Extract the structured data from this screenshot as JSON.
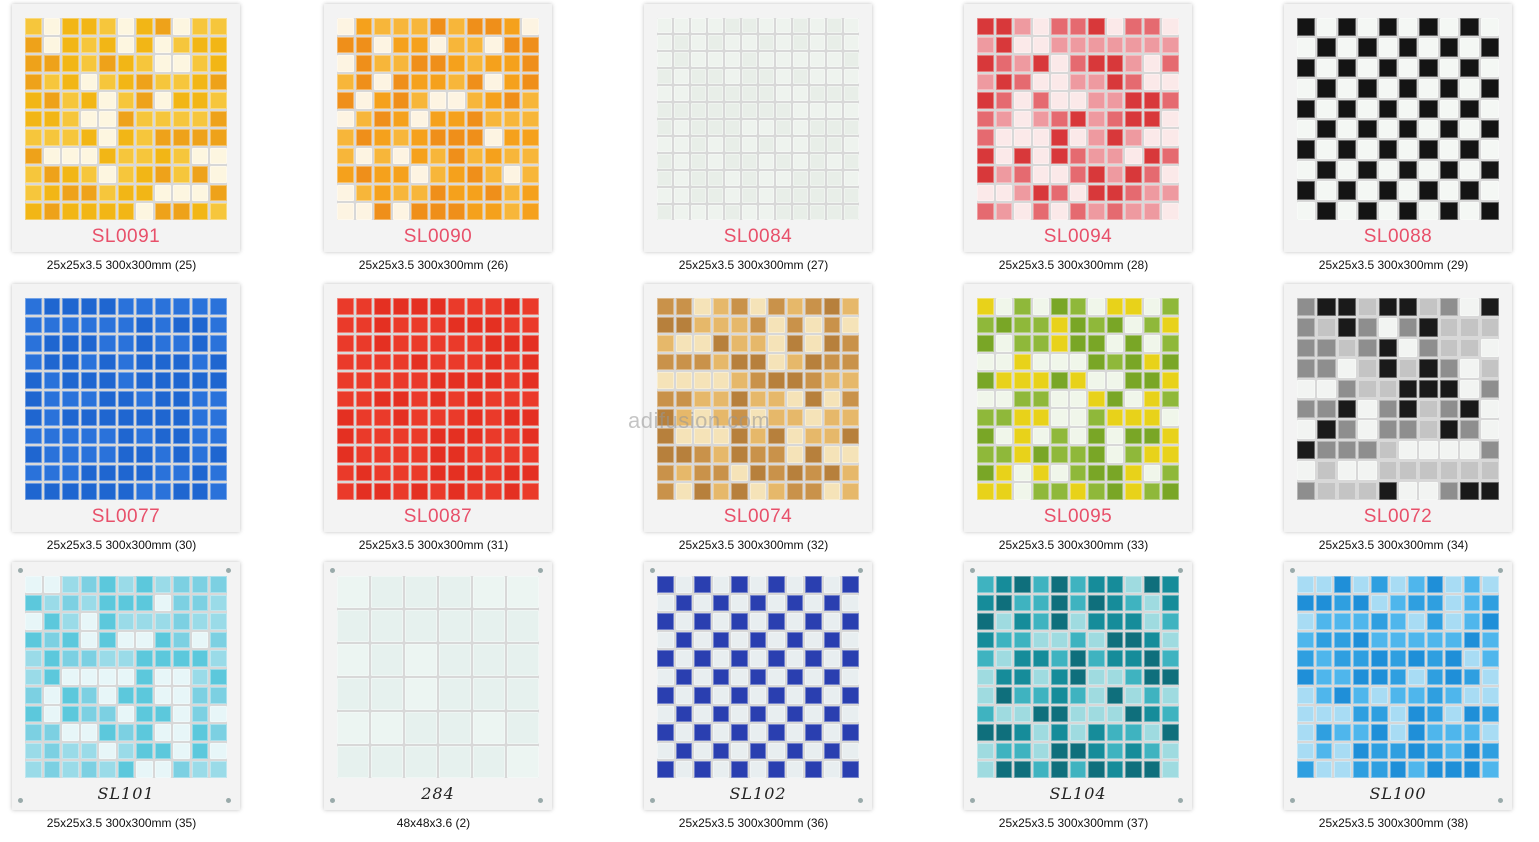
{
  "watermark": "adifusion.com",
  "products": [
    {
      "code": "SL0091",
      "caption": "25x25x3.5 300x300mm (25)",
      "pattern": "mix",
      "palette": [
        "#f2b616",
        "#f6c63c",
        "#fdf6e0",
        "#eea21a"
      ],
      "grid": 11,
      "handwritten": false
    },
    {
      "code": "SL0090",
      "caption": "25x25x3.5 300x300mm (26)",
      "pattern": "mix",
      "palette": [
        "#f5a11c",
        "#f7b63a",
        "#fdf4e2",
        "#ef8f1a"
      ],
      "grid": 11,
      "handwritten": false
    },
    {
      "code": "SL0084",
      "caption": "25x25x3.5 300x300mm (27)",
      "pattern": "solid",
      "palette": [
        "#e8eee8",
        "#eef3ee"
      ],
      "grid": 12,
      "handwritten": false
    },
    {
      "code": "SL0094",
      "caption": "25x25x3.5 300x300mm (28)",
      "pattern": "mix",
      "palette": [
        "#d8383a",
        "#e56a70",
        "#fbe9e9",
        "#ee9aa0"
      ],
      "grid": 11,
      "handwritten": false
    },
    {
      "code": "SL0088",
      "caption": "25x25x3.5 300x300mm (29)",
      "pattern": "checker",
      "palette": [
        "#141414",
        "#f4f7f4"
      ],
      "grid": 10,
      "handwritten": false
    },
    {
      "code": "SL0077",
      "caption": "25x25x3.5 300x300mm (30)",
      "pattern": "solid",
      "palette": [
        "#1f66d0",
        "#2a72da"
      ],
      "grid": 11,
      "handwritten": false
    },
    {
      "code": "SL0087",
      "caption": "25x25x3.5 300x300mm (31)",
      "pattern": "solid",
      "palette": [
        "#e43022",
        "#ea3a2a"
      ],
      "grid": 11,
      "handwritten": false
    },
    {
      "code": "SL0074",
      "caption": "25x25x3.5 300x300mm (32)",
      "pattern": "mix",
      "palette": [
        "#c9924a",
        "#e6b86a",
        "#f5e3b8",
        "#b7803c"
      ],
      "grid": 11,
      "handwritten": false
    },
    {
      "code": "SL0095",
      "caption": "25x25x3.5 300x300mm (33)",
      "pattern": "mix",
      "palette": [
        "#79a626",
        "#e8d21a",
        "#f0f6ea",
        "#8fb83a"
      ],
      "grid": 11,
      "handwritten": false
    },
    {
      "code": "SL0072",
      "caption": "25x25x3.5 300x300mm (34)",
      "pattern": "mix",
      "palette": [
        "#1a1a1a",
        "#8e8e8e",
        "#f2f4f2",
        "#c4c4c4"
      ],
      "grid": 10,
      "handwritten": false
    },
    {
      "code": "SL101",
      "caption": "25x25x3.5 300x300mm (35)",
      "pattern": "mix",
      "palette": [
        "#5cc8dc",
        "#9adbe8",
        "#e7f6f8",
        "#7cd0e2"
      ],
      "grid": 11,
      "handwritten": true
    },
    {
      "code": "284",
      "caption": "48x48x3.6 (2)",
      "pattern": "solid",
      "palette": [
        "#e6f1ee",
        "#ecf5f2"
      ],
      "grid": 6,
      "handwritten": true
    },
    {
      "code": "SL102",
      "caption": "25x25x3.5 300x300mm (36)",
      "pattern": "checker",
      "palette": [
        "#2a3fb0",
        "#e8eef0"
      ],
      "grid": 11,
      "handwritten": true
    },
    {
      "code": "SL104",
      "caption": "25x25x3.5 300x300mm (37)",
      "pattern": "mix",
      "palette": [
        "#168c9a",
        "#3fb3c0",
        "#9fdbe0",
        "#0f6f7c"
      ],
      "grid": 11,
      "handwritten": true
    },
    {
      "code": "SL100",
      "caption": "25x25x3.5 300x300mm (38)",
      "pattern": "mix",
      "palette": [
        "#1f8fd8",
        "#4fb6ec",
        "#a8dcf4",
        "#2f9fe0"
      ],
      "grid": 11,
      "handwritten": true
    }
  ]
}
